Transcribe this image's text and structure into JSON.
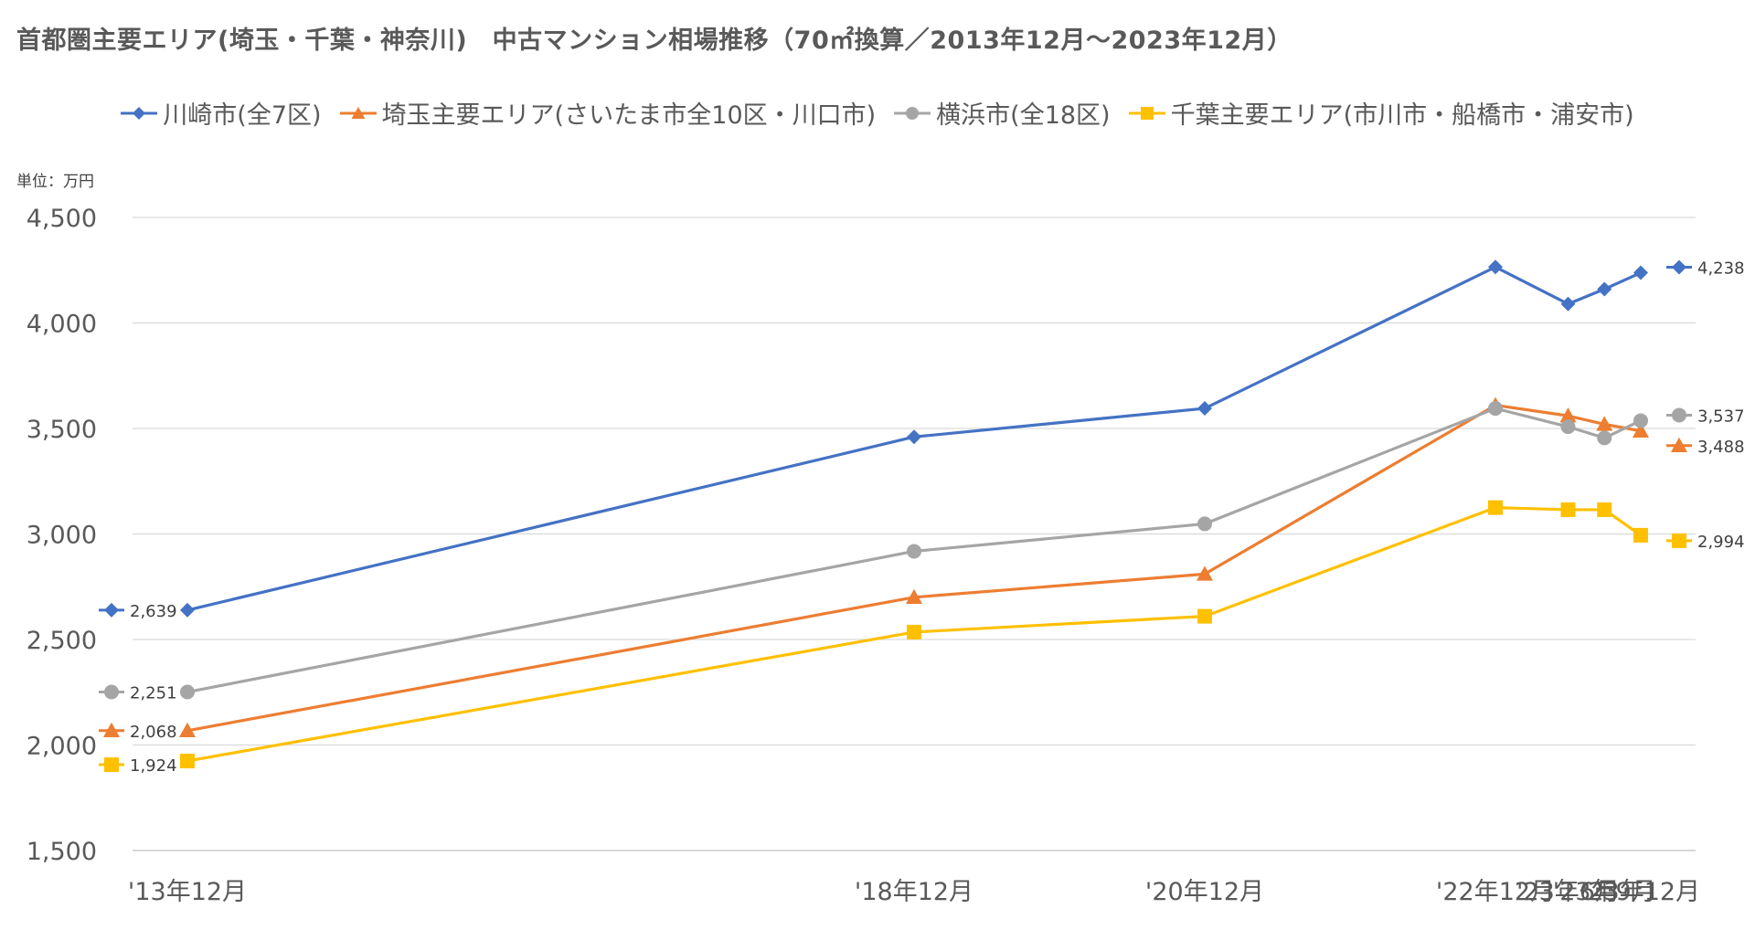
{
  "chart_data": {
    "type": "line",
    "title": "首都圏主要エリア(埼玉・千葉・神奈川)　中古マンション相場推移（70㎡換算／2013年12月～2023年12月）",
    "unit_label": "単位：万円",
    "categories": [
      "'13年12月",
      "'18年12月",
      "'20年12月",
      "'22年12月",
      "'23年6月",
      "'23年9月",
      "'23年12月"
    ],
    "x_months": [
      0,
      60,
      84,
      108,
      114,
      117,
      120
    ],
    "y_ticks": [
      "1,500",
      "2,000",
      "2,500",
      "3,000",
      "3,500",
      "4,000",
      "4,500"
    ],
    "ylim": [
      1500,
      4500
    ],
    "grid": true,
    "legend_position": "top",
    "series": [
      {
        "name": "川崎市(全7区)",
        "color": "#4472C4",
        "marker": "diamond",
        "values": [
          2639,
          3460,
          3595,
          4265,
          4090,
          4160,
          4238
        ],
        "start_label": "2,639",
        "end_label": "4,238"
      },
      {
        "name": "埼玉主要エリア(さいたま市全10区・川口市)",
        "color": "#ED7D31",
        "marker": "triangle",
        "values": [
          2068,
          2700,
          2810,
          3610,
          3560,
          3520,
          3488
        ],
        "start_label": "2,068",
        "end_label": "3,488"
      },
      {
        "name": "横浜市(全18区)",
        "color": "#A5A5A5",
        "marker": "circle",
        "values": [
          2251,
          2918,
          3048,
          3595,
          3508,
          3455,
          3537
        ],
        "start_label": "2,251",
        "end_label": "3,537"
      },
      {
        "name": "千葉主要エリア(市川市・船橋市・浦安市)",
        "color": "#FFC000",
        "marker": "square",
        "values": [
          1924,
          2535,
          2610,
          3125,
          3115,
          3115,
          2994
        ],
        "start_label": "1,924",
        "end_label": "2,994"
      }
    ]
  }
}
